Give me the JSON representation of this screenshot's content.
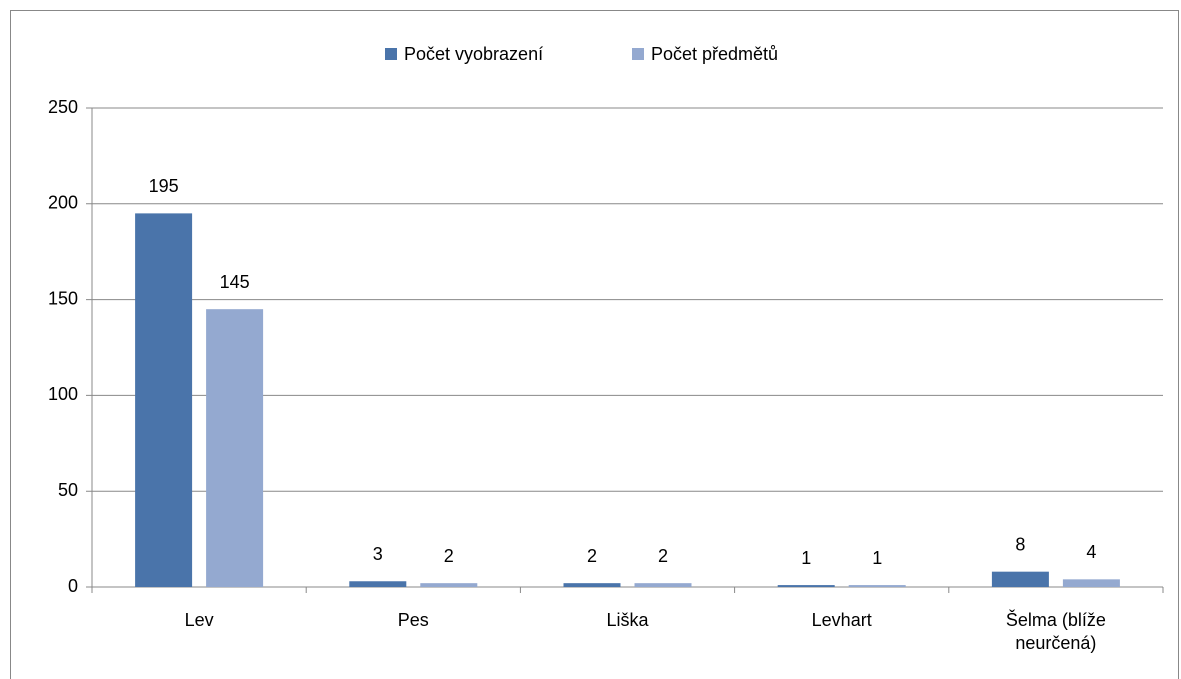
{
  "chart_data": {
    "type": "bar",
    "categories": [
      "Lev",
      "Pes",
      "Liška",
      "Levhart",
      "Šelma (blíže neurčená)"
    ],
    "series": [
      {
        "name": "Počet vyobrazení",
        "color": "#4a74aa",
        "values": [
          195,
          3,
          2,
          1,
          8
        ]
      },
      {
        "name": "Počet předmětů",
        "color": "#94a9d0",
        "values": [
          145,
          2,
          2,
          1,
          4
        ]
      }
    ],
    "ylim": [
      0,
      250
    ],
    "yticks": [
      0,
      50,
      100,
      150,
      200,
      250
    ],
    "grid": true,
    "legend": "top"
  }
}
